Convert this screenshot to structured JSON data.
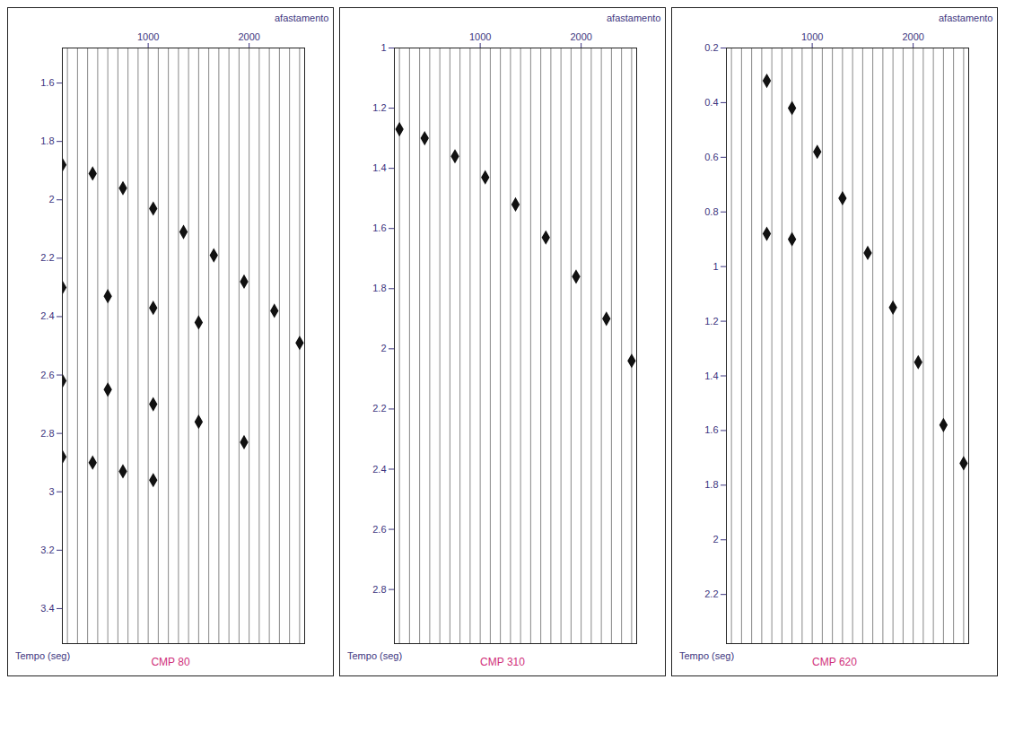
{
  "chart_data": [
    {
      "type": "wiggle",
      "title": "CMP 80",
      "x_label": "afastamento",
      "y_label": "Tempo (seg)",
      "xlim": [
        150,
        2550
      ],
      "xticks": [
        1000,
        2000
      ],
      "ylim": [
        1.48,
        3.52
      ],
      "yticks": [
        1.6,
        1.8,
        2,
        2.2,
        2.4,
        2.6,
        2.8,
        3,
        3.2,
        3.4
      ],
      "traces": [
        200,
        300,
        400,
        500,
        600,
        700,
        800,
        900,
        1000,
        1100,
        1200,
        1300,
        1400,
        1500,
        1600,
        1700,
        1800,
        1900,
        2000,
        2100,
        2200,
        2300,
        2400,
        2500
      ],
      "color": "#111111",
      "marker": "diamond",
      "grid": false,
      "series": [
        {
          "x": [
            150,
            450,
            750,
            1050,
            1350,
            1650,
            1950,
            2250,
            2500
          ],
          "values": [
            1.88,
            1.91,
            1.96,
            2.03,
            2.11,
            2.19,
            2.28,
            2.38,
            2.49
          ]
        },
        {
          "x": [
            150,
            600,
            1050,
            1500
          ],
          "values": [
            2.3,
            2.33,
            2.37,
            2.42
          ]
        },
        {
          "x": [
            150,
            600,
            1050,
            1500,
            1950
          ],
          "values": [
            2.62,
            2.65,
            2.7,
            2.76,
            2.83
          ]
        },
        {
          "x": [
            150,
            450,
            750,
            1050
          ],
          "values": [
            2.88,
            2.9,
            2.93,
            2.96
          ]
        }
      ]
    },
    {
      "type": "wiggle",
      "title": "CMP 310",
      "x_label": "afastamento",
      "y_label": "Tempo (seg)",
      "xlim": [
        150,
        2550
      ],
      "xticks": [
        1000,
        2000
      ],
      "ylim": [
        1,
        2.98
      ],
      "yticks": [
        1,
        1.2,
        1.4,
        1.6,
        1.8,
        2,
        2.2,
        2.4,
        2.6,
        2.8
      ],
      "traces": [
        200,
        300,
        400,
        500,
        600,
        700,
        800,
        900,
        1000,
        1100,
        1200,
        1300,
        1400,
        1500,
        1600,
        1700,
        1800,
        1900,
        2000,
        2100,
        2200,
        2300,
        2400,
        2500
      ],
      "color": "#111111",
      "marker": "diamond",
      "grid": false,
      "series": [
        {
          "x": [
            200,
            450,
            750,
            1050,
            1350,
            1650,
            1950,
            2250,
            2500
          ],
          "values": [
            1.27,
            1.3,
            1.36,
            1.43,
            1.52,
            1.63,
            1.76,
            1.9,
            2.04
          ]
        }
      ]
    },
    {
      "type": "wiggle",
      "title": "CMP 620",
      "x_label": "afastamento",
      "y_label": "Tempo (seg)",
      "xlim": [
        150,
        2550
      ],
      "xticks": [
        1000,
        2000
      ],
      "ylim": [
        0.2,
        2.38
      ],
      "yticks": [
        0.2,
        0.4,
        0.6,
        0.8,
        1,
        1.2,
        1.4,
        1.6,
        1.8,
        2,
        2.2
      ],
      "traces": [
        200,
        300,
        400,
        500,
        600,
        700,
        800,
        900,
        1000,
        1100,
        1200,
        1300,
        1400,
        1500,
        1600,
        1700,
        1800,
        1900,
        2000,
        2100,
        2200,
        2300,
        2400,
        2500
      ],
      "color": "#111111",
      "marker": "diamond",
      "grid": false,
      "series": [
        {
          "x": [
            550,
            800,
            1050,
            1300,
            1550,
            1800,
            2050,
            2300,
            2500
          ],
          "values": [
            0.32,
            0.42,
            0.58,
            0.75,
            0.95,
            1.15,
            1.35,
            1.58,
            1.72
          ]
        },
        {
          "x": [
            550,
            800
          ],
          "values": [
            0.88,
            0.9
          ]
        }
      ]
    }
  ]
}
